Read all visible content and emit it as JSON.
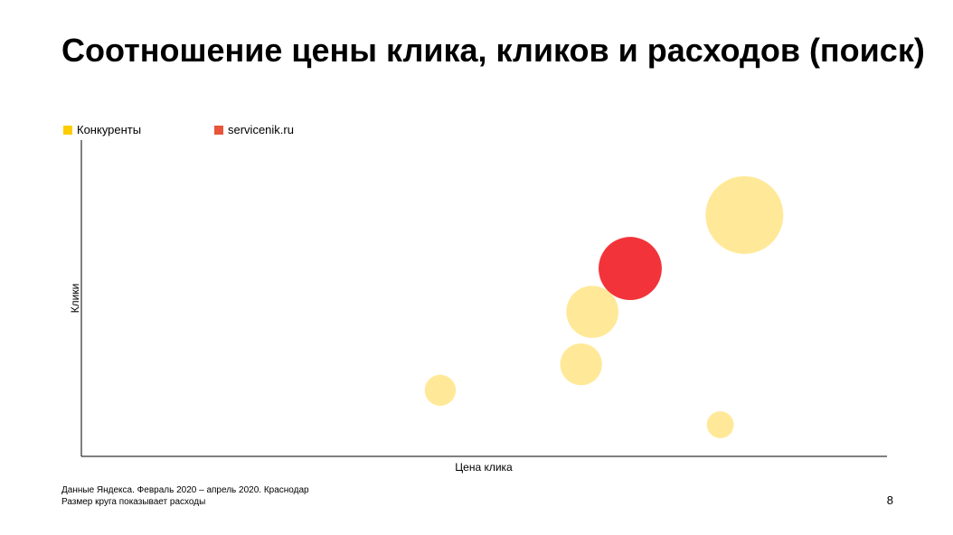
{
  "title": "Соотношение цены клика, кликов и расходов (поиск)",
  "footer": {
    "line1": "Данные Яндекса. Февраль 2020 – апрель 2020. Краснодар",
    "line2": "Размер круга показывает расходы"
  },
  "page_number": "8",
  "chart_data": {
    "type": "scatter",
    "subtype": "bubble",
    "xlabel": "Цена клика",
    "ylabel": "Клики",
    "xlim": [
      0,
      100
    ],
    "ylim": [
      0,
      100
    ],
    "grid": false,
    "legend_placement": "top-left",
    "note": "relative units; axes have no tick labels",
    "series": [
      {
        "name": "Конкуренты",
        "color": "#FFCC00",
        "bubble_color": "#FFE999",
        "points": [
          {
            "x": 82.4,
            "y": 76.3,
            "size": 100
          },
          {
            "x": 63.5,
            "y": 45.7,
            "size": 45
          },
          {
            "x": 62.1,
            "y": 29.1,
            "size": 29
          },
          {
            "x": 44.6,
            "y": 20.9,
            "size": 16
          },
          {
            "x": 79.4,
            "y": 10.0,
            "size": 12
          }
        ]
      },
      {
        "name": "servicenik.ru",
        "color": "#E8553A",
        "bubble_color": "#F2333A",
        "points": [
          {
            "x": 68.2,
            "y": 59.4,
            "size": 66
          }
        ]
      }
    ]
  }
}
